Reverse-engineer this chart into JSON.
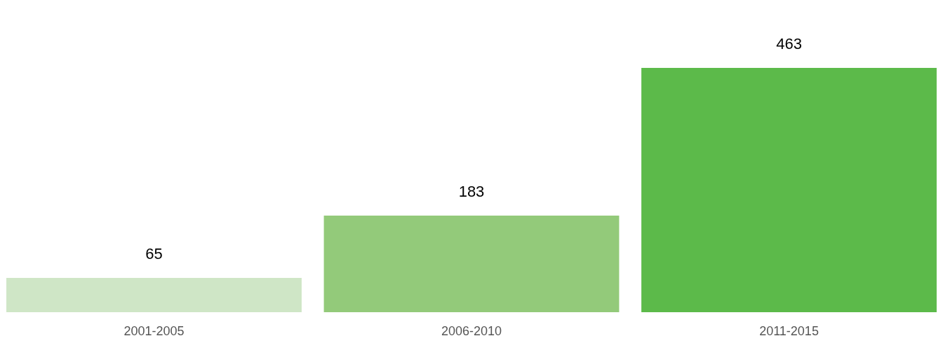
{
  "chart_data": {
    "type": "bar",
    "categories": [
      "2001-2005",
      "2006-2010",
      "2011-2015"
    ],
    "values": [
      65,
      183,
      463
    ],
    "colors": [
      "#cfe6c6",
      "#93ca7a",
      "#5cba4a"
    ],
    "data_labels": true,
    "grid": false,
    "legend": false
  }
}
